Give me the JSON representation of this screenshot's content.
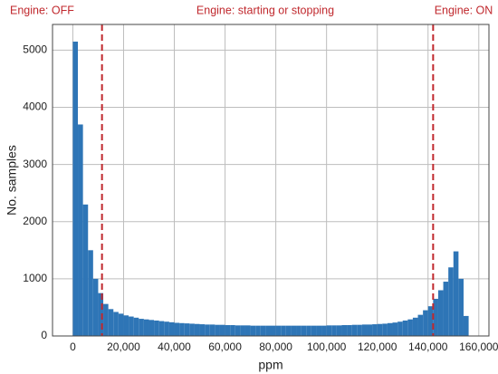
{
  "chart_data": {
    "type": "histogram",
    "annotations": [
      "Engine: OFF",
      "Engine: starting or stopping",
      "Engine: ON"
    ],
    "x_label": "ppm",
    "y_label": "No. samples",
    "bins": [
      0,
      2000,
      4000,
      6000,
      8000,
      10000,
      12000,
      14000,
      16000,
      18000,
      20000,
      22000,
      24000,
      26000,
      28000,
      30000,
      32000,
      34000,
      36000,
      38000,
      40000,
      42000,
      44000,
      46000,
      48000,
      50000,
      52000,
      54000,
      56000,
      58000,
      60000,
      62000,
      64000,
      66000,
      68000,
      70000,
      72000,
      74000,
      76000,
      78000,
      80000,
      82000,
      84000,
      86000,
      88000,
      90000,
      92000,
      94000,
      96000,
      98000,
      100000,
      102000,
      104000,
      106000,
      108000,
      110000,
      112000,
      114000,
      116000,
      118000,
      120000,
      122000,
      124000,
      126000,
      128000,
      130000,
      132000,
      134000,
      136000,
      138000,
      140000,
      142000,
      144000,
      146000,
      148000,
      150000,
      152000,
      154000,
      156000
    ],
    "counts": [
      5150,
      3700,
      2300,
      1500,
      1000,
      750,
      560,
      470,
      420,
      390,
      360,
      340,
      320,
      300,
      290,
      280,
      270,
      260,
      250,
      240,
      230,
      225,
      220,
      215,
      210,
      205,
      200,
      200,
      195,
      195,
      190,
      190,
      185,
      185,
      185,
      180,
      180,
      180,
      180,
      180,
      180,
      180,
      180,
      180,
      180,
      180,
      180,
      180,
      180,
      180,
      185,
      185,
      185,
      190,
      190,
      195,
      195,
      200,
      200,
      205,
      210,
      215,
      225,
      235,
      250,
      270,
      290,
      320,
      370,
      450,
      520,
      650,
      800,
      950,
      1200,
      1480,
      1000,
      350
    ],
    "color": "#2e75b6",
    "vlines": [
      11500,
      142000
    ],
    "vline_color": "#c0282d",
    "xlim": [
      -8000,
      164000
    ],
    "xticks": [
      0,
      {
        "value": 20000,
        "label": "20,000"
      },
      {
        "value": 40000,
        "label": "40,000"
      },
      {
        "value": 60000,
        "label": "60,000"
      },
      {
        "value": 80000,
        "label": "80,000"
      },
      {
        "value": 100000,
        "label": "100,000"
      },
      {
        "value": 120000,
        "label": "120,000"
      },
      {
        "value": 140000,
        "label": "140,000"
      },
      {
        "value": 160000,
        "label": "160,000"
      }
    ],
    "ylim": [
      0,
      5450
    ],
    "yticks": [
      0,
      1000,
      2000,
      3000,
      4000,
      5000
    ],
    "grid": true
  }
}
